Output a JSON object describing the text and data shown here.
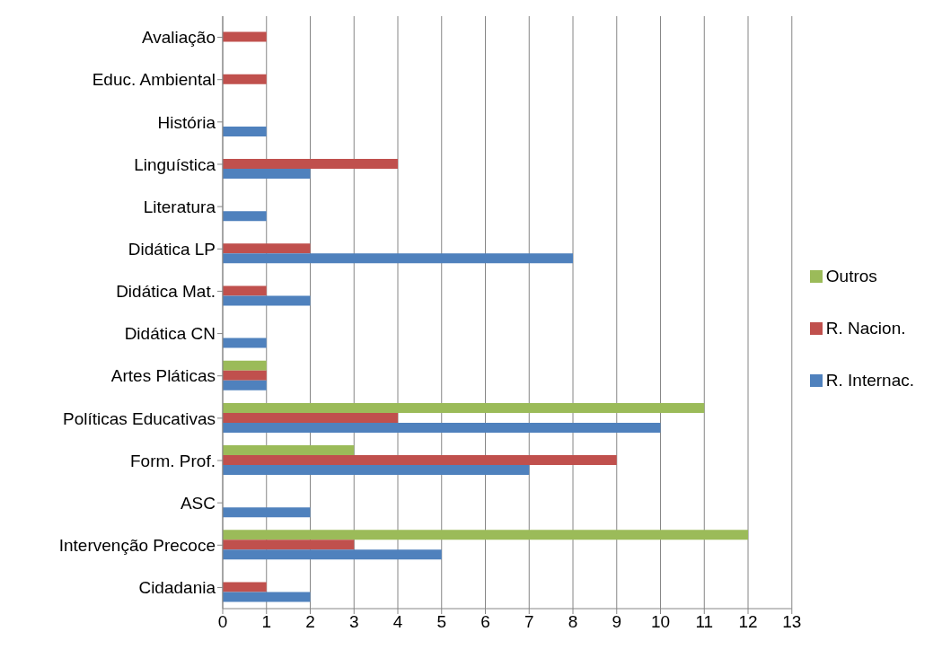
{
  "chart_data": {
    "type": "bar",
    "orientation": "horizontal",
    "categories": [
      "Avaliação",
      "Educ. Ambiental",
      "História",
      "Linguística",
      "Literatura",
      "Didática LP",
      "Didática Mat.",
      "Didática CN",
      "Artes Pláticas",
      "Políticas Educativas",
      "Form. Prof.",
      "ASC",
      "Intervenção Precoce",
      "Cidadania"
    ],
    "series": [
      {
        "name": "Outros",
        "color": "#9bbb59",
        "values": [
          null,
          null,
          null,
          null,
          null,
          null,
          null,
          null,
          1,
          11,
          3,
          null,
          12,
          null
        ]
      },
      {
        "name": "R. Nacion.",
        "color": "#c0504d",
        "values": [
          1,
          1,
          null,
          4,
          null,
          2,
          1,
          null,
          1,
          4,
          9,
          null,
          3,
          1
        ]
      },
      {
        "name": "R. Internac.",
        "color": "#4f81bd",
        "values": [
          null,
          null,
          1,
          2,
          1,
          8,
          2,
          1,
          1,
          10,
          7,
          2,
          5,
          2
        ]
      }
    ],
    "xlim": [
      0,
      13
    ],
    "xticks": [
      0,
      1,
      2,
      3,
      4,
      5,
      6,
      7,
      8,
      9,
      10,
      11,
      12,
      13
    ],
    "grid": "x",
    "legend": "right"
  }
}
